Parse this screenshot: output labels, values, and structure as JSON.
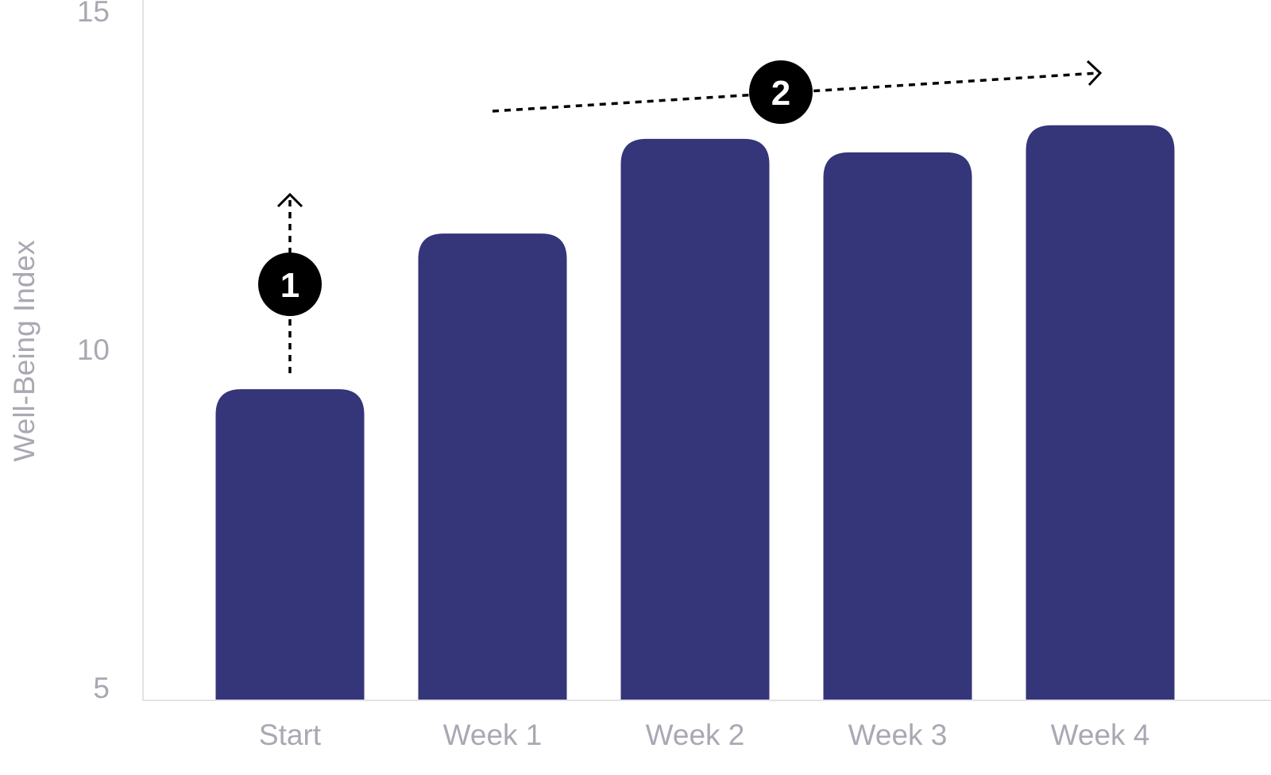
{
  "chart_data": {
    "type": "bar",
    "categories": [
      "Start",
      "Week 1",
      "Week 2",
      "Week 3",
      "Week 4"
    ],
    "values": [
      9.6,
      11.9,
      13.3,
      13.1,
      13.5
    ],
    "title": "",
    "xlabel": "",
    "ylabel": "Well-Being Index",
    "ylim": [
      5,
      15
    ],
    "yticks": [
      5,
      10,
      15
    ],
    "grid": false,
    "bar_color": "#35357a",
    "annotations": [
      {
        "label": "1",
        "description_kind": "vertical dashed arrow up from Start bar",
        "category": "Start"
      },
      {
        "label": "2",
        "description_kind": "dashed arrow rising from Week 1 to Week 4",
        "from": "Week 1",
        "to": "Week 4"
      }
    ]
  }
}
